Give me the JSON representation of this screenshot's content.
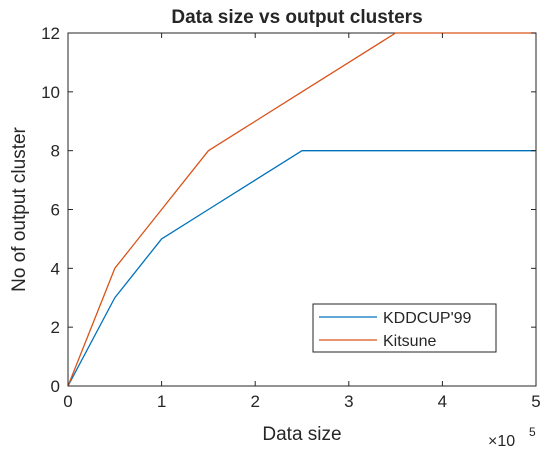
{
  "chart_data": {
    "type": "line",
    "title": "Data size vs output clusters",
    "xlabel": "Data size",
    "ylabel": "No of output cluster",
    "x_exponent_label": "×10",
    "x_exponent_power": "5",
    "xlim": [
      0,
      5
    ],
    "ylim": [
      0,
      12
    ],
    "xticks": [
      "0",
      "1",
      "2",
      "3",
      "4",
      "5"
    ],
    "yticks": [
      "0",
      "2",
      "4",
      "6",
      "8",
      "10",
      "12"
    ],
    "grid": false,
    "legend_position": "bottom-right",
    "series": [
      {
        "name": "KDDCUP'99",
        "color": "#0072BD",
        "x": [
          0,
          0.5,
          1.0,
          1.5,
          2.0,
          2.5,
          3.0,
          3.5,
          4.0,
          4.5,
          5.0
        ],
        "y": [
          0,
          3,
          5,
          6,
          7,
          8,
          8,
          8,
          8,
          8,
          8
        ]
      },
      {
        "name": "Kitsune",
        "color": "#D95319",
        "x": [
          0,
          0.5,
          1.0,
          1.5,
          2.0,
          2.5,
          3.0,
          3.5,
          4.0,
          4.5,
          5.0
        ],
        "y": [
          0,
          4,
          6,
          8,
          9,
          10,
          11,
          12,
          12,
          12,
          12
        ]
      }
    ]
  }
}
